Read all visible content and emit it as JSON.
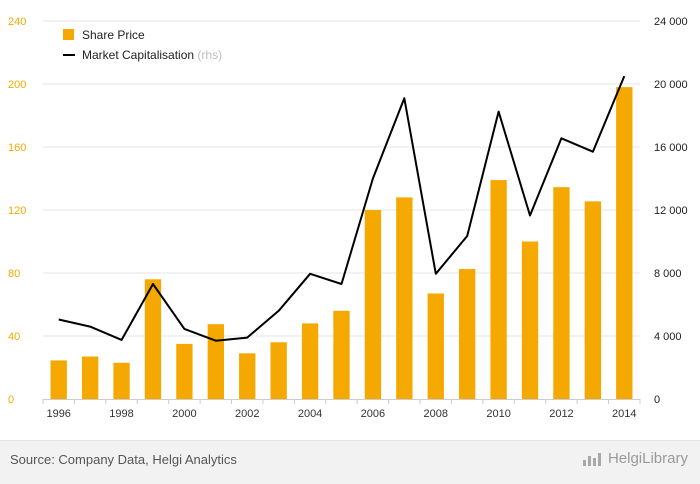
{
  "chart_data": {
    "type": "bar",
    "categories": [
      "1996",
      "1997",
      "1998",
      "1999",
      "2000",
      "2001",
      "2002",
      "2003",
      "2004",
      "2005",
      "2006",
      "2007",
      "2008",
      "2009",
      "2010",
      "2011",
      "2012",
      "2013",
      "2014"
    ],
    "x_tick_labels": [
      "1996",
      "1998",
      "2000",
      "2002",
      "2004",
      "2006",
      "2008",
      "2010",
      "2012",
      "2014"
    ],
    "series": [
      {
        "name": "Share Price",
        "type": "bar",
        "axis": "left",
        "color": "#f5a800",
        "values": [
          24.5,
          27,
          23,
          76,
          35,
          47.5,
          29,
          36,
          48,
          56,
          120,
          128,
          67,
          82.5,
          139,
          100,
          134.5,
          125.5,
          198
        ]
      },
      {
        "name": "Market Capitalisation",
        "name_suffix": "(rhs)",
        "type": "line",
        "axis": "right",
        "color": "#000000",
        "values": [
          5050,
          4600,
          3750,
          7300,
          4450,
          3700,
          3900,
          5600,
          7950,
          7300,
          14000,
          19100,
          7950,
          10350,
          18250,
          11650,
          16550,
          15700,
          20500
        ]
      }
    ],
    "y_left": {
      "ylim": [
        0,
        240
      ],
      "ticks": [
        "0",
        "40",
        "80",
        "120",
        "160",
        "200",
        "240"
      ]
    },
    "y_right": {
      "ylim": [
        0,
        24000
      ],
      "ticks": [
        "0",
        "4 000",
        "8 000",
        "12 000",
        "16 000",
        "20 000",
        "24 000"
      ]
    },
    "grid": true,
    "legend_position": "top-left"
  },
  "footer": {
    "source": "Source: Company Data, Helgi Analytics",
    "brand": "HelgiLibrary",
    "brand_icon": "bar-chart-logo-icon"
  }
}
